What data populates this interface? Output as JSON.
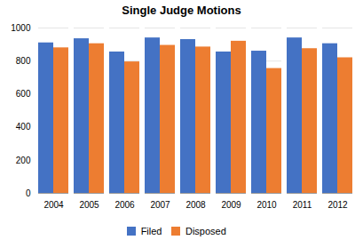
{
  "chart_data": {
    "type": "bar",
    "title": "Single Judge Motions",
    "categories": [
      "2004",
      "2005",
      "2006",
      "2007",
      "2008",
      "2009",
      "2010",
      "2011",
      "2012"
    ],
    "series": [
      {
        "name": "Filed",
        "color": "#4472C4",
        "values": [
          910,
          935,
          855,
          940,
          930,
          855,
          860,
          940,
          905
        ]
      },
      {
        "name": "Disposed",
        "color": "#ED7D31",
        "values": [
          880,
          905,
          795,
          895,
          885,
          920,
          755,
          875,
          820
        ]
      }
    ],
    "ylim": [
      0,
      1000
    ],
    "yticks": [
      0,
      200,
      400,
      600,
      800,
      1000
    ],
    "grid": true,
    "legend": "bottom"
  }
}
